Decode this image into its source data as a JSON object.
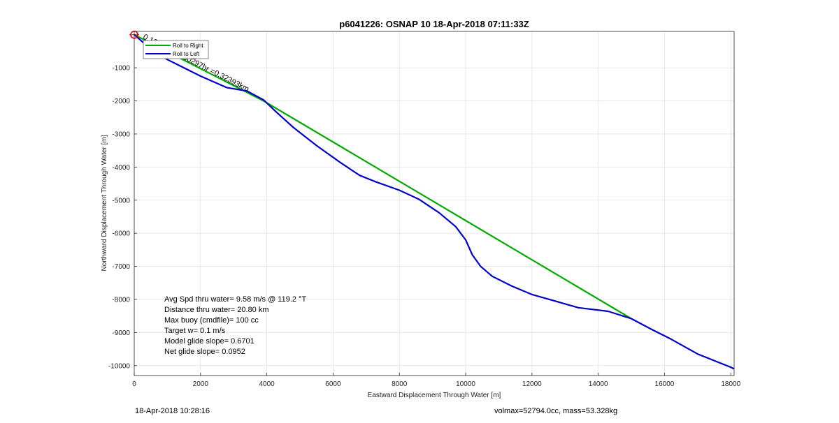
{
  "chart_data": {
    "type": "line",
    "title": "p6041226: OSNAP 10 18-Apr-2018 07:11:33Z",
    "xlabel": "Eastward Displacement Through Water [m]",
    "ylabel": "Northward Displacement Through Water [m]",
    "xlim": [
      0,
      18100
    ],
    "ylim": [
      -10300,
      100
    ],
    "xticks": [
      0,
      2000,
      4000,
      6000,
      8000,
      10000,
      12000,
      14000,
      16000,
      18000
    ],
    "yticks": [
      -10000,
      -9000,
      -8000,
      -7000,
      -6000,
      -5000,
      -4000,
      -3000,
      -2000,
      -1000
    ],
    "grid": true,
    "legend": {
      "placement": "top-left",
      "entries": [
        "Roll to Right",
        "Roll to Left"
      ]
    },
    "series": [
      {
        "name": "Roll to Right",
        "color": "#00aa00",
        "x": [
          0,
          3900,
          15000
        ],
        "y": [
          0,
          -2000,
          -8580
        ]
      },
      {
        "name": "Roll to Left",
        "color": "#0000cc",
        "x": [
          0,
          400,
          1000,
          2000,
          2800,
          3400,
          3900,
          4300,
          4800,
          5500,
          6200,
          6800,
          7300,
          8000,
          8600,
          9200,
          9700,
          10000,
          10200,
          10450,
          10800,
          11400,
          12000,
          12700,
          13400,
          14300,
          15000,
          15600,
          16200,
          17000,
          18000,
          18100
        ],
        "y": [
          0,
          -350,
          -750,
          -1250,
          -1600,
          -1700,
          -1970,
          -2350,
          -2800,
          -3350,
          -3850,
          -4250,
          -4450,
          -4700,
          -4980,
          -5380,
          -5800,
          -6200,
          -6650,
          -7000,
          -7300,
          -7600,
          -7850,
          -8050,
          -8250,
          -8360,
          -8580,
          -8900,
          -9200,
          -9650,
          -10050,
          -10100
        ]
      }
    ],
    "start_marker": {
      "x": 0,
      "y": 0,
      "color": "#dd0000"
    },
    "annotation": {
      "text": "0.12m/s for0.60297hr =0.32393km",
      "x": 250,
      "y": -110,
      "angle_deg": 27
    },
    "stats": [
      "Avg Spd thru water=  9.58 m/s @ 119.2 °T",
      "Distance thru water= 20.80 km",
      "Max buoy (cmdfile)= 100 cc",
      "Target w= 0.1 m/s",
      "Model glide slope= 0.6701",
      "Net glide slope= 0.0952"
    ]
  },
  "footer": {
    "left": "18-Apr-2018 10:28:16",
    "right": "volmax=52794.0cc, mass=53.328kg"
  }
}
